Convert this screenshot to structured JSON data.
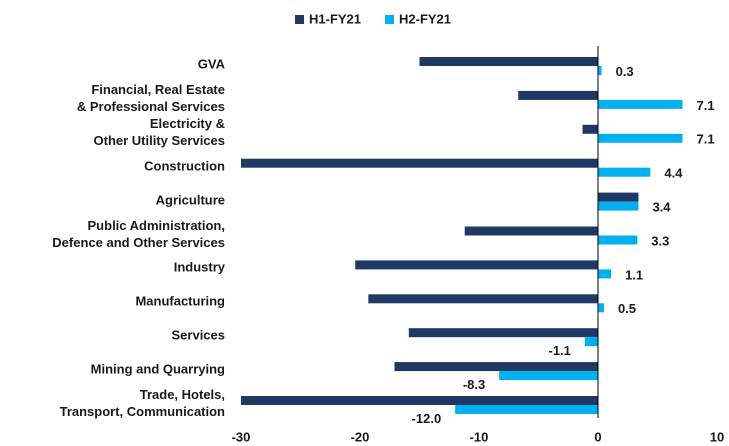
{
  "chart_data": {
    "type": "barh",
    "categories": [
      "GVA",
      "Financial, Real Estate\n& Professional Services",
      "Electricity &\nOther Utility Services",
      "Construction",
      "Agriculture",
      "Public Administration,\nDefence and Other Services",
      "Industry",
      "Manufacturing",
      "Services",
      "Mining and Quarrying",
      "Trade, Hotels,\nTransport, Communication"
    ],
    "series": [
      {
        "name": "H1-FY21",
        "color": "#1f3864",
        "values": [
          -15.0,
          -6.7,
          -1.3,
          -30.0,
          3.4,
          -11.2,
          -20.4,
          -19.3,
          -15.9,
          -17.1,
          -30.0
        ]
      },
      {
        "name": "H2-FY21",
        "color": "#00b0f0",
        "values": [
          0.3,
          7.1,
          7.1,
          4.4,
          3.4,
          3.3,
          1.1,
          0.5,
          -1.1,
          -8.3,
          -12.0
        ],
        "value_labels": [
          "0.3",
          "7.1",
          "7.1",
          "4.4",
          "3.4",
          "3.3",
          "1.1",
          "0.5",
          "-1.1",
          "-8.3",
          "-12.0"
        ]
      }
    ],
    "xlim": [
      -30,
      10
    ],
    "xticks": [
      -30,
      -20,
      -10,
      0,
      10
    ],
    "legend": "top"
  }
}
